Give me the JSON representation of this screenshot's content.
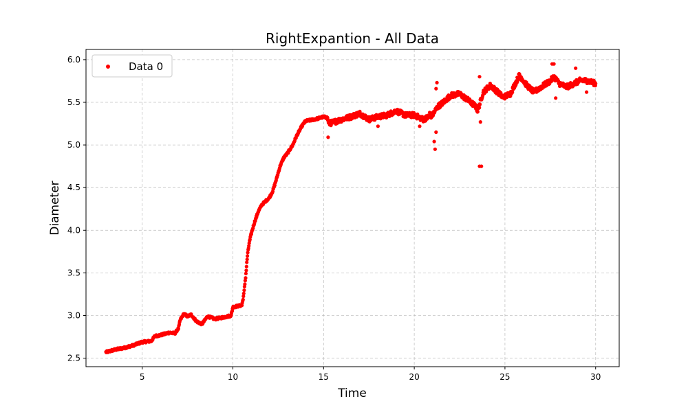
{
  "chart_data": {
    "type": "scatter",
    "title": "RightExpantion - All Data",
    "xlabel": "Time",
    "ylabel": "Diameter",
    "xlim": [
      1.9,
      31.3
    ],
    "ylim": [
      2.4,
      6.12
    ],
    "xticks": [
      5,
      10,
      15,
      20,
      25,
      30
    ],
    "yticks": [
      2.5,
      3.0,
      3.5,
      4.0,
      4.5,
      5.0,
      5.5,
      6.0
    ],
    "grid": true,
    "legend_position": "top-left",
    "series": [
      {
        "name": "Data 0",
        "color": "#ff0000",
        "anchors": [
          [
            3.0,
            2.57
          ],
          [
            3.5,
            2.6
          ],
          [
            4.0,
            2.62
          ],
          [
            4.5,
            2.65
          ],
          [
            5.0,
            2.69
          ],
          [
            5.5,
            2.7
          ],
          [
            5.7,
            2.76
          ],
          [
            6.0,
            2.77
          ],
          [
            6.5,
            2.8
          ],
          [
            6.8,
            2.79
          ],
          [
            7.0,
            2.85
          ],
          [
            7.1,
            2.95
          ],
          [
            7.3,
            3.02
          ],
          [
            7.5,
            2.99
          ],
          [
            7.7,
            3.01
          ],
          [
            8.0,
            2.93
          ],
          [
            8.3,
            2.9
          ],
          [
            8.6,
            2.99
          ],
          [
            9.0,
            2.96
          ],
          [
            9.5,
            2.98
          ],
          [
            9.9,
            3.0
          ],
          [
            10.0,
            3.1
          ],
          [
            10.5,
            3.12
          ],
          [
            10.6,
            3.25
          ],
          [
            10.7,
            3.45
          ],
          [
            10.8,
            3.7
          ],
          [
            10.9,
            3.85
          ],
          [
            11.0,
            3.95
          ],
          [
            11.2,
            4.1
          ],
          [
            11.4,
            4.22
          ],
          [
            11.6,
            4.3
          ],
          [
            12.0,
            4.38
          ],
          [
            12.2,
            4.46
          ],
          [
            12.4,
            4.6
          ],
          [
            12.6,
            4.75
          ],
          [
            12.8,
            4.85
          ],
          [
            13.0,
            4.9
          ],
          [
            13.3,
            5.0
          ],
          [
            13.5,
            5.1
          ],
          [
            13.8,
            5.22
          ],
          [
            14.0,
            5.28
          ],
          [
            14.5,
            5.3
          ],
          [
            15.0,
            5.33
          ],
          [
            15.2,
            5.32
          ],
          [
            15.3,
            5.25
          ],
          [
            16.0,
            5.3
          ],
          [
            16.5,
            5.33
          ],
          [
            17.0,
            5.37
          ],
          [
            17.5,
            5.3
          ],
          [
            18.0,
            5.33
          ],
          [
            18.5,
            5.35
          ],
          [
            19.0,
            5.4
          ],
          [
            19.5,
            5.35
          ],
          [
            20.0,
            5.35
          ],
          [
            20.5,
            5.3
          ],
          [
            21.0,
            5.35
          ],
          [
            21.3,
            5.45
          ],
          [
            21.6,
            5.5
          ],
          [
            22.0,
            5.58
          ],
          [
            22.5,
            5.6
          ],
          [
            23.0,
            5.52
          ],
          [
            23.4,
            5.45
          ],
          [
            23.5,
            5.4
          ],
          [
            23.8,
            5.62
          ],
          [
            24.2,
            5.7
          ],
          [
            24.6,
            5.62
          ],
          [
            24.9,
            5.56
          ],
          [
            25.3,
            5.6
          ],
          [
            25.8,
            5.82
          ],
          [
            26.2,
            5.7
          ],
          [
            26.6,
            5.62
          ],
          [
            27.0,
            5.68
          ],
          [
            27.5,
            5.75
          ],
          [
            27.7,
            5.8
          ],
          [
            28.0,
            5.72
          ],
          [
            28.4,
            5.68
          ],
          [
            28.8,
            5.72
          ],
          [
            29.2,
            5.76
          ],
          [
            29.6,
            5.75
          ],
          [
            30.0,
            5.72
          ]
        ],
        "outliers": [
          [
            15.25,
            5.09
          ],
          [
            21.1,
            5.04
          ],
          [
            21.15,
            4.95
          ],
          [
            21.2,
            5.15
          ],
          [
            21.2,
            5.66
          ],
          [
            21.25,
            5.73
          ],
          [
            23.6,
            4.75
          ],
          [
            23.7,
            4.75
          ],
          [
            23.65,
            5.27
          ],
          [
            20.85,
            5.38
          ],
          [
            23.6,
            5.8
          ],
          [
            27.6,
            5.95
          ],
          [
            27.7,
            5.95
          ],
          [
            28.9,
            5.9
          ],
          [
            27.8,
            5.55
          ],
          [
            29.5,
            5.62
          ],
          [
            18.0,
            5.22
          ],
          [
            20.3,
            5.22
          ]
        ]
      }
    ]
  }
}
